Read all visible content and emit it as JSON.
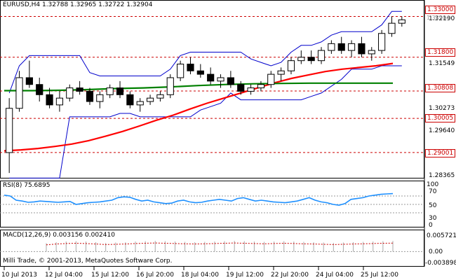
{
  "header": {
    "symbol_line": "EURUSD,H4  1.32788 1.32965 1.32722 1.32904"
  },
  "price_axis": {
    "labels": [
      "1.32190",
      "1.31549",
      "1.30273",
      "1.29640",
      "1.28365"
    ],
    "ref_lines": [
      "1.33000",
      "1.31800",
      "1.30808",
      "1.30005",
      "1.29001"
    ],
    "current_price": "1.32904"
  },
  "rsi": {
    "title": "RSI(8) 75.6895",
    "levels": [
      "100",
      "70",
      "50",
      "30",
      "0"
    ]
  },
  "macd": {
    "title": "MACD(12,26,9) 0.003156 0.002410",
    "levels": [
      "0.005721",
      "0.00",
      "-0.003898"
    ]
  },
  "footer": {
    "copyright": "Milli Trade, © 2001-2013, MetaQuotes Software Corp."
  },
  "time_axis": {
    "labels": [
      "10 Jul 2013",
      "12 Jul 04:00",
      "15 Jul 12:00",
      "16 Jul 20:00",
      "18 Jul 04:00",
      "19 Jul 12:00",
      "22 Jul 20:00",
      "24 Jul 04:00",
      "25 Jul 12:00"
    ]
  },
  "colors": {
    "bull_candle": "#ffffff",
    "bear_candle": "#000000",
    "ma_fast": "#ff0000",
    "ma_slow": "#008000",
    "bollinger": "#0000cc",
    "rsi_line": "#1e90ff",
    "ref_line": "#cc0000"
  },
  "chart_data": [
    {
      "type": "candlestick",
      "title": "EURUSD,H4",
      "ylim": [
        1.283,
        1.334
      ],
      "horizontal_levels": [
        1.33,
        1.318,
        1.30808,
        1.30005,
        1.29001
      ],
      "candles": [
        {
          "o": 1.29,
          "h": 1.306,
          "l": 1.284,
          "c": 1.303
        },
        {
          "o": 1.303,
          "h": 1.314,
          "l": 1.302,
          "c": 1.312
        },
        {
          "o": 1.312,
          "h": 1.317,
          "l": 1.309,
          "c": 1.31
        },
        {
          "o": 1.31,
          "h": 1.312,
          "l": 1.305,
          "c": 1.307
        },
        {
          "o": 1.307,
          "h": 1.309,
          "l": 1.303,
          "c": 1.304
        },
        {
          "o": 1.304,
          "h": 1.308,
          "l": 1.302,
          "c": 1.306
        },
        {
          "o": 1.306,
          "h": 1.31,
          "l": 1.305,
          "c": 1.309
        },
        {
          "o": 1.309,
          "h": 1.311,
          "l": 1.307,
          "c": 1.308
        },
        {
          "o": 1.308,
          "h": 1.309,
          "l": 1.304,
          "c": 1.305
        },
        {
          "o": 1.305,
          "h": 1.308,
          "l": 1.303,
          "c": 1.307
        },
        {
          "o": 1.307,
          "h": 1.31,
          "l": 1.306,
          "c": 1.309
        },
        {
          "o": 1.309,
          "h": 1.311,
          "l": 1.306,
          "c": 1.307
        },
        {
          "o": 1.307,
          "h": 1.308,
          "l": 1.303,
          "c": 1.304
        },
        {
          "o": 1.304,
          "h": 1.306,
          "l": 1.302,
          "c": 1.305
        },
        {
          "o": 1.305,
          "h": 1.307,
          "l": 1.304,
          "c": 1.306
        },
        {
          "o": 1.306,
          "h": 1.308,
          "l": 1.305,
          "c": 1.307
        },
        {
          "o": 1.307,
          "h": 1.313,
          "l": 1.306,
          "c": 1.312
        },
        {
          "o": 1.312,
          "h": 1.317,
          "l": 1.311,
          "c": 1.316
        },
        {
          "o": 1.316,
          "h": 1.318,
          "l": 1.313,
          "c": 1.314
        },
        {
          "o": 1.314,
          "h": 1.316,
          "l": 1.312,
          "c": 1.313
        },
        {
          "o": 1.313,
          "h": 1.315,
          "l": 1.31,
          "c": 1.311
        },
        {
          "o": 1.311,
          "h": 1.313,
          "l": 1.309,
          "c": 1.312
        },
        {
          "o": 1.312,
          "h": 1.314,
          "l": 1.309,
          "c": 1.31
        },
        {
          "o": 1.31,
          "h": 1.311,
          "l": 1.307,
          "c": 1.308
        },
        {
          "o": 1.308,
          "h": 1.31,
          "l": 1.307,
          "c": 1.309
        },
        {
          "o": 1.309,
          "h": 1.311,
          "l": 1.308,
          "c": 1.31
        },
        {
          "o": 1.31,
          "h": 1.314,
          "l": 1.309,
          "c": 1.313
        },
        {
          "o": 1.313,
          "h": 1.315,
          "l": 1.311,
          "c": 1.314
        },
        {
          "o": 1.314,
          "h": 1.318,
          "l": 1.313,
          "c": 1.317
        },
        {
          "o": 1.317,
          "h": 1.32,
          "l": 1.316,
          "c": 1.318
        },
        {
          "o": 1.318,
          "h": 1.32,
          "l": 1.316,
          "c": 1.317
        },
        {
          "o": 1.317,
          "h": 1.321,
          "l": 1.316,
          "c": 1.32
        },
        {
          "o": 1.32,
          "h": 1.323,
          "l": 1.319,
          "c": 1.322
        },
        {
          "o": 1.322,
          "h": 1.324,
          "l": 1.319,
          "c": 1.32
        },
        {
          "o": 1.32,
          "h": 1.323,
          "l": 1.318,
          "c": 1.322
        },
        {
          "o": 1.322,
          "h": 1.324,
          "l": 1.318,
          "c": 1.319
        },
        {
          "o": 1.319,
          "h": 1.321,
          "l": 1.317,
          "c": 1.32
        },
        {
          "o": 1.32,
          "h": 1.326,
          "l": 1.319,
          "c": 1.325
        },
        {
          "o": 1.325,
          "h": 1.33,
          "l": 1.324,
          "c": 1.328
        },
        {
          "o": 1.328,
          "h": 1.33,
          "l": 1.327,
          "c": 1.329
        }
      ],
      "series": [
        {
          "name": "MA fast",
          "values": [
            1.2905,
            1.2908,
            1.2912,
            1.2918,
            1.2925,
            1.2935,
            1.2948,
            1.2962,
            1.2978,
            1.2995,
            1.301,
            1.3028,
            1.3045,
            1.306,
            1.3075,
            1.309,
            1.3105,
            1.3118,
            1.3128,
            1.3138,
            1.3145,
            1.315,
            1.3155,
            1.3162
          ]
        },
        {
          "name": "MA slow",
          "values": [
            1.3082,
            1.3082,
            1.3083,
            1.3085,
            1.3088,
            1.309,
            1.3093,
            1.3097,
            1.31,
            1.3102,
            1.3103,
            1.3104,
            1.3104,
            1.3104,
            1.3104
          ]
        }
      ]
    },
    {
      "type": "line",
      "title": "RSI(8) 75.6895",
      "ylim": [
        0,
        100
      ],
      "values": [
        72,
        70,
        60,
        58,
        55,
        56,
        58,
        57,
        56,
        55,
        56,
        57,
        50,
        52,
        54,
        55,
        56,
        58,
        60,
        66,
        68,
        67,
        62,
        58,
        60,
        56,
        54,
        52,
        53,
        58,
        60,
        56,
        54,
        55,
        58,
        60,
        62,
        60,
        58,
        64,
        66,
        62,
        58,
        60,
        58,
        56,
        55,
        54,
        56,
        58,
        62,
        66,
        60,
        56,
        54,
        50,
        48,
        52,
        62,
        64,
        66,
        70,
        72,
        74,
        75,
        75.7
      ]
    },
    {
      "type": "bar",
      "title": "MACD(12,26,9) 0.003156 0.002410",
      "ylim": [
        -0.003898,
        0.005721
      ],
      "values": [
        0.0025,
        0.0028,
        0.003,
        0.0031,
        0.003,
        0.0028,
        0.0026,
        0.0027,
        0.0028,
        0.003,
        0.0031,
        0.0032,
        0.0031,
        0.003,
        0.0029,
        0.0028,
        0.0029,
        0.003,
        0.0031,
        0.0032,
        0.0031,
        0.003,
        0.0029,
        0.003,
        0.0031,
        0.003,
        0.0029,
        0.0028,
        0.0027,
        0.0026,
        0.0027,
        0.0028,
        0.0029,
        0.003,
        0.0031,
        0.00315
      ]
    }
  ]
}
